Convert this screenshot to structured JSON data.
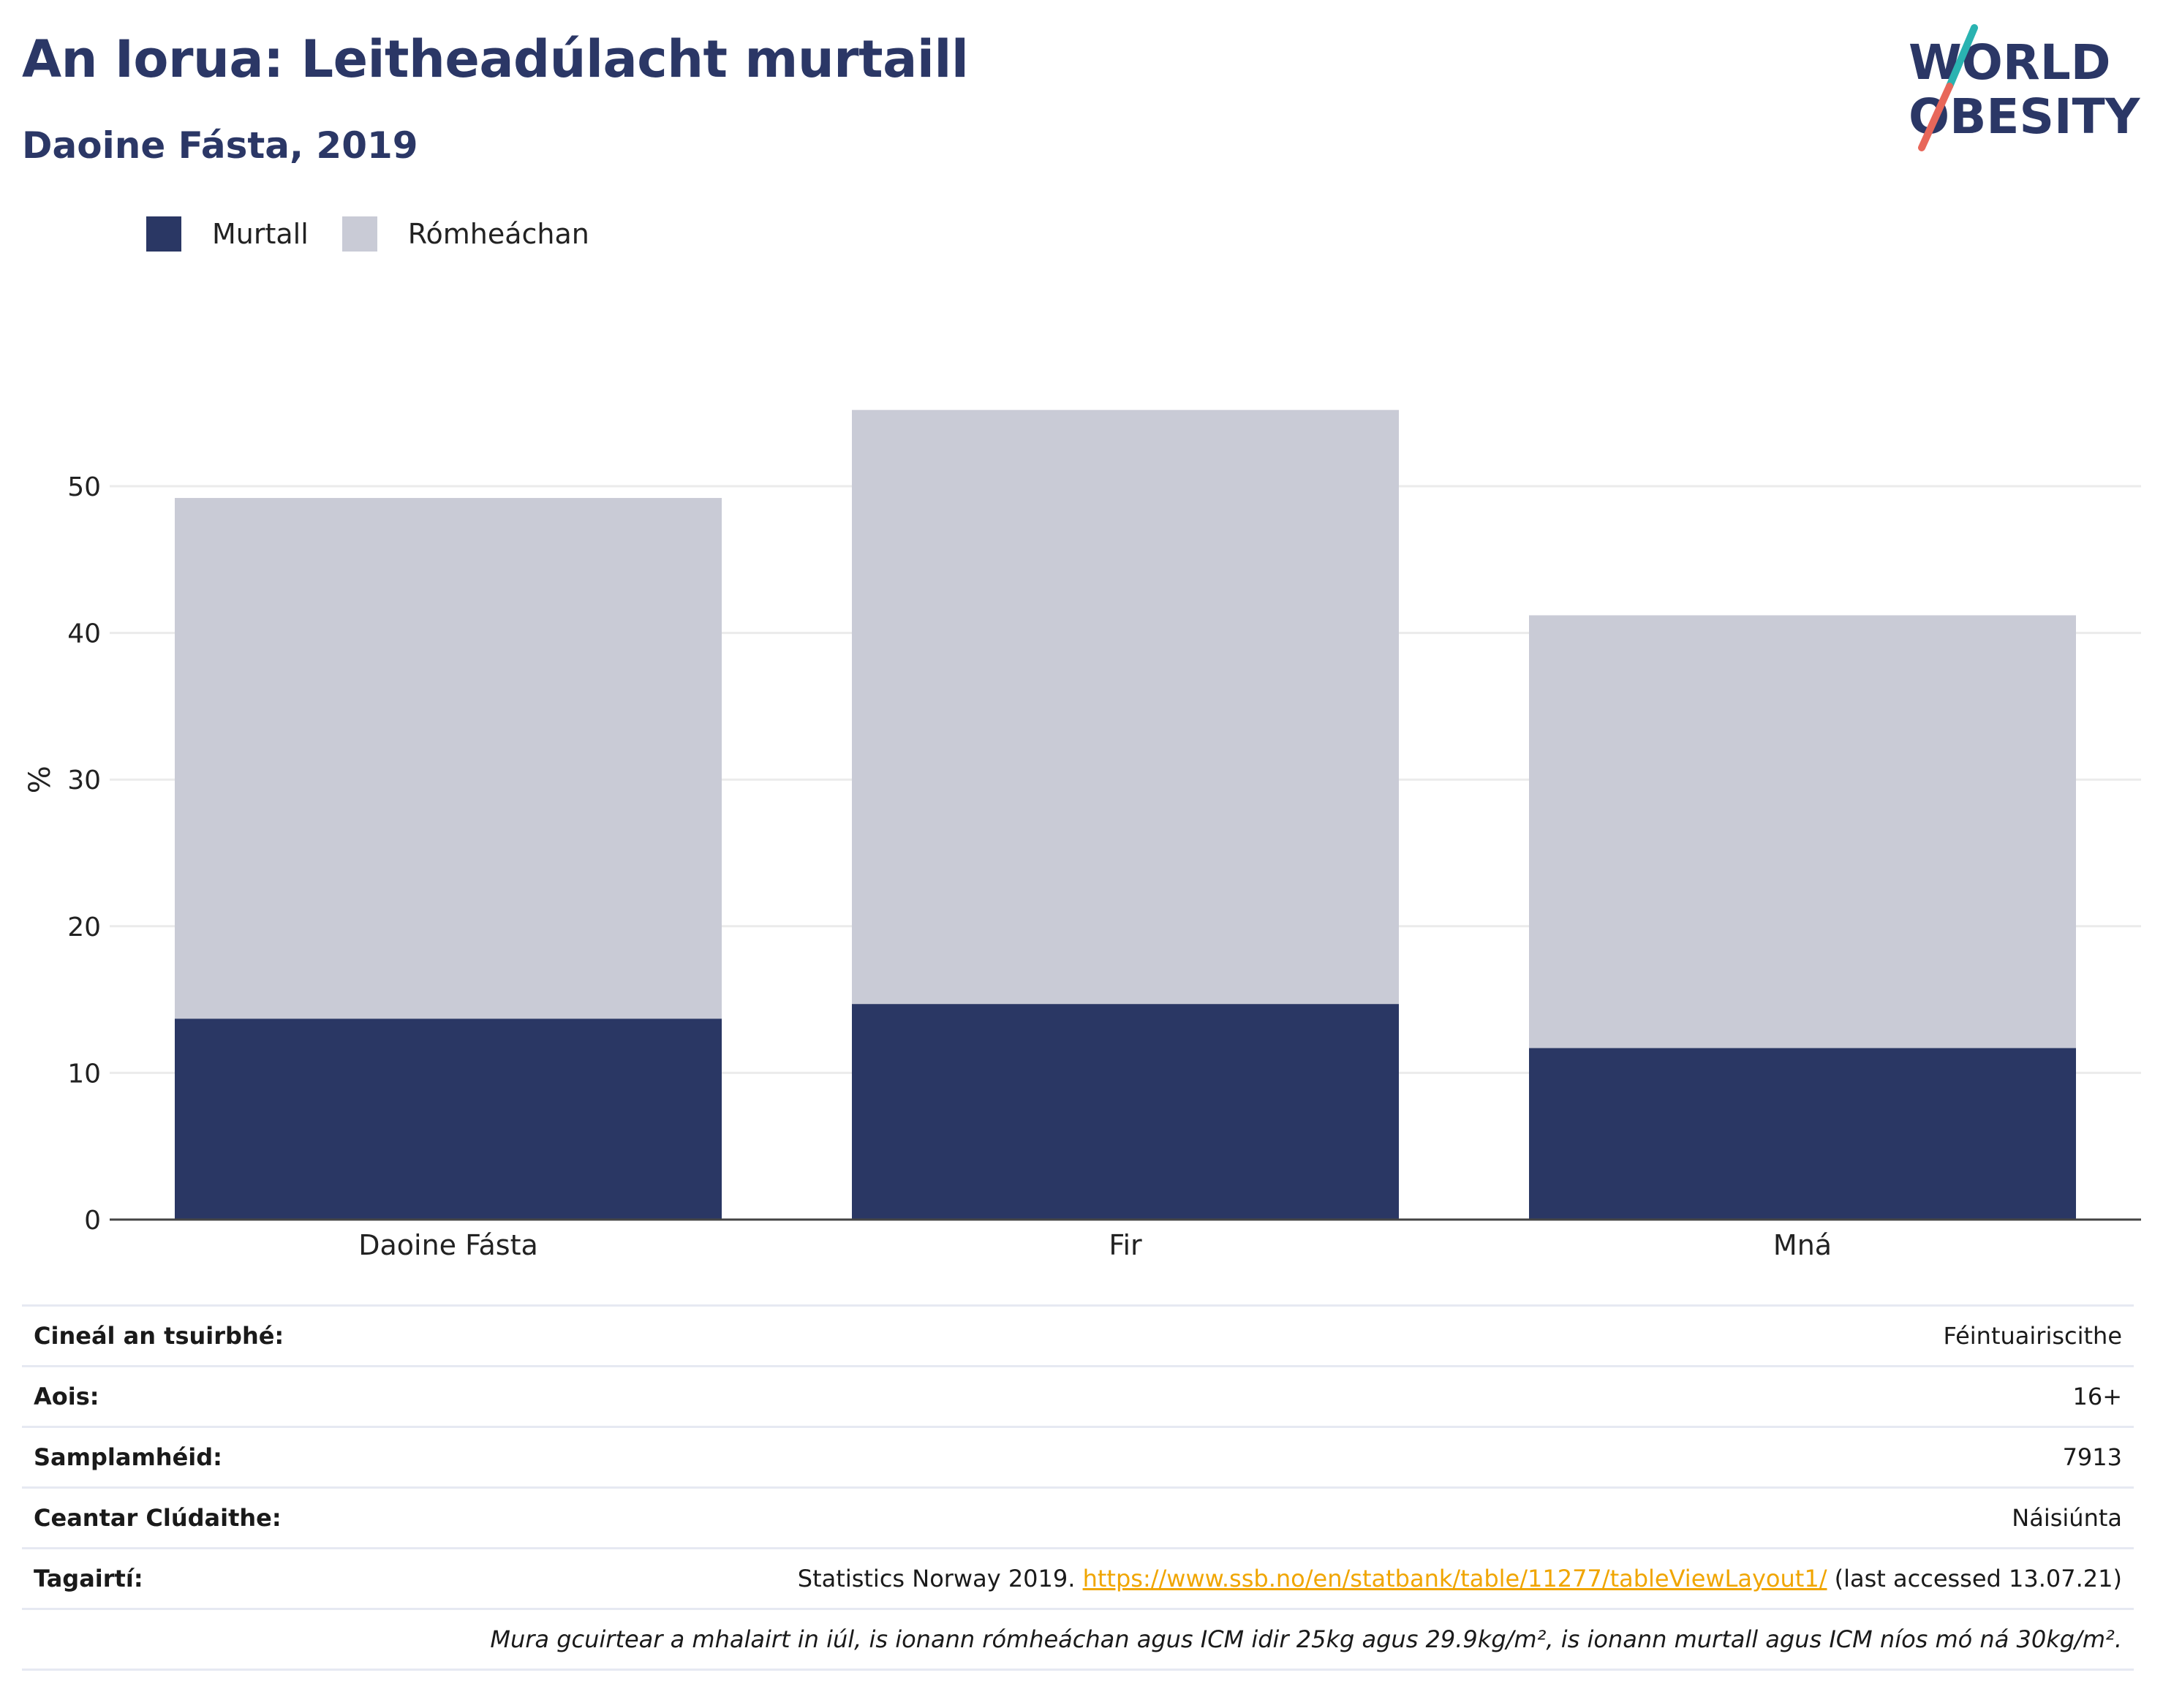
{
  "header": {
    "title": "An Iorua: Leitheadúlacht murtaill",
    "subtitle": "Daoine Fásta, 2019"
  },
  "logo": {
    "line1": "WORLD",
    "line2": "OBESITY"
  },
  "colors": {
    "obese": "#2a3764",
    "overweight": "#c9cbd6",
    "title": "#2b3766",
    "link": "#f0a500"
  },
  "legend": [
    {
      "label": "Murtall",
      "color": "#2a3764"
    },
    {
      "label": "Rómheáchan",
      "color": "#c9cbd6"
    }
  ],
  "chart_data": {
    "type": "bar",
    "stacked": true,
    "categories": [
      "Daoine Fásta",
      "Fir",
      "Mná"
    ],
    "series": [
      {
        "name": "Murtall",
        "values": [
          13.7,
          14.7,
          11.7
        ]
      },
      {
        "name": "Rómheáchan",
        "values": [
          35.5,
          40.5,
          29.5
        ]
      }
    ],
    "ylabel": "%",
    "ylim": [
      0,
      60
    ],
    "yticks": [
      0,
      10,
      20,
      30,
      40,
      50
    ],
    "grid": true
  },
  "info": {
    "rows": [
      {
        "label": "Cineál an tsuirbhé:",
        "value": "Féintuairiscithe"
      },
      {
        "label": "Aois:",
        "value": "16+"
      },
      {
        "label": "Samplamhéid:",
        "value": "7913"
      },
      {
        "label": "Ceantar Clúdaithe:",
        "value": "Náisiúnta"
      }
    ],
    "references_label": "Tagairtí:",
    "references_prefix": "Statistics Norway 2019.",
    "references_link": "https://www.ssb.no/en/statbank/table/11277/tableViewLayout1/",
    "references_suffix": "(last accessed 13.07.21)",
    "note": "Mura gcuirtear a mhalairt in iúl, is ionann rómheáchan agus ICM idir 25kg agus 29.9kg/m², is ionann murtall agus ICM níos mó ná 30kg/m²."
  }
}
